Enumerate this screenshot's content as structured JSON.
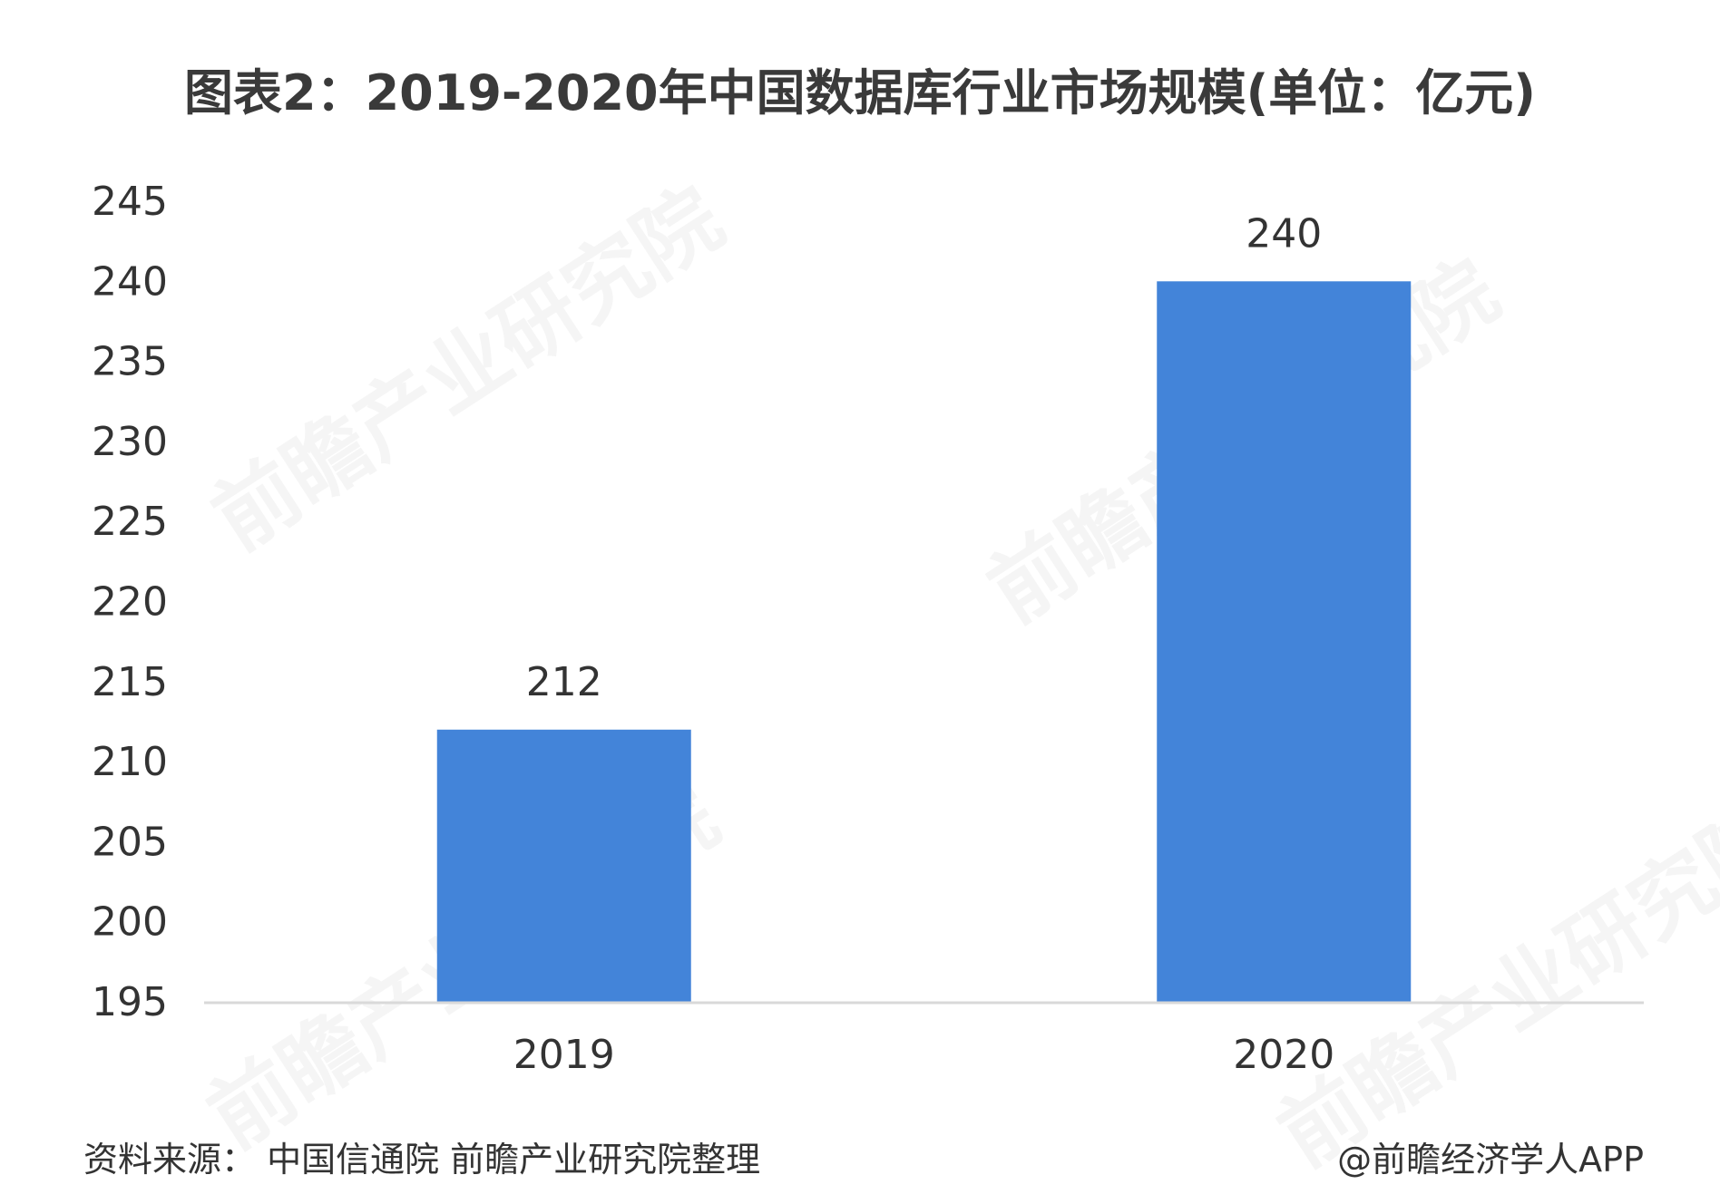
{
  "title": "图表2：2019-2020年中国数据库行业市场规模(单位：亿元)",
  "footer": {
    "source": "资料来源：  中国信通院 前瞻产业研究院整理",
    "credit": "@前瞻经济学人APP"
  },
  "watermark": {
    "text": "前瞻产业研究院"
  },
  "colors": {
    "bar": "#4384d9",
    "axis_line": "#d9d9d9",
    "label": "#333333"
  },
  "chart_data": {
    "type": "bar",
    "title": "图表2：2019-2020年中国数据库行业市场规模(单位：亿元)",
    "xlabel": "",
    "ylabel": "",
    "categories": [
      "2019",
      "2020"
    ],
    "values": [
      212,
      240
    ],
    "data_labels": [
      "212",
      "240"
    ],
    "ylim": [
      195,
      245
    ],
    "yticks": [
      195,
      200,
      205,
      210,
      215,
      220,
      225,
      230,
      235,
      240,
      245
    ],
    "grid": false,
    "legend": "none"
  }
}
